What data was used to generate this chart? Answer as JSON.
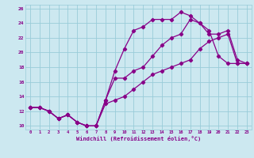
{
  "xlabel": "Windchill (Refroidissement éolien,°C)",
  "bg_color": "#cce8f0",
  "grid_color": "#99ccd9",
  "line_color": "#880088",
  "xlim": [
    -0.5,
    23.5
  ],
  "ylim": [
    9.5,
    26.5
  ],
  "xticks": [
    0,
    1,
    2,
    3,
    4,
    5,
    6,
    7,
    8,
    9,
    10,
    11,
    12,
    13,
    14,
    15,
    16,
    17,
    18,
    19,
    20,
    21,
    22,
    23
  ],
  "yticks": [
    10,
    12,
    14,
    16,
    18,
    20,
    22,
    24,
    26
  ],
  "line1_x": [
    0,
    1,
    2,
    3,
    4,
    5,
    6,
    7,
    8,
    9,
    10,
    11,
    12,
    13,
    14,
    15,
    16,
    17,
    18,
    19,
    20,
    21,
    22,
    23
  ],
  "line1_y": [
    12.5,
    12.5,
    12.0,
    11.0,
    11.5,
    10.5,
    10.0,
    10.0,
    13.5,
    17.5,
    20.5,
    23.0,
    23.5,
    24.5,
    24.5,
    24.5,
    25.5,
    25.0,
    24.0,
    23.0,
    19.5,
    18.5,
    18.5,
    18.5
  ],
  "line2_x": [
    0,
    1,
    2,
    3,
    4,
    5,
    6,
    7,
    8,
    9,
    10,
    11,
    12,
    13,
    14,
    15,
    16,
    17,
    18,
    19,
    20,
    21,
    22,
    23
  ],
  "line2_y": [
    12.5,
    12.5,
    12.0,
    11.0,
    11.5,
    10.5,
    10.0,
    10.0,
    13.5,
    16.5,
    16.5,
    17.5,
    18.0,
    19.5,
    21.0,
    22.0,
    22.5,
    24.5,
    24.0,
    22.5,
    22.5,
    23.0,
    19.0,
    18.5
  ],
  "line3_x": [
    0,
    1,
    2,
    3,
    4,
    5,
    6,
    7,
    8,
    9,
    10,
    11,
    12,
    13,
    14,
    15,
    16,
    17,
    18,
    19,
    20,
    21,
    22,
    23
  ],
  "line3_y": [
    12.5,
    12.5,
    12.0,
    11.0,
    11.5,
    10.5,
    10.0,
    10.0,
    13.0,
    13.5,
    14.0,
    15.0,
    16.0,
    17.0,
    17.5,
    18.0,
    18.5,
    19.0,
    20.5,
    21.5,
    22.0,
    22.5,
    18.5,
    18.5
  ]
}
